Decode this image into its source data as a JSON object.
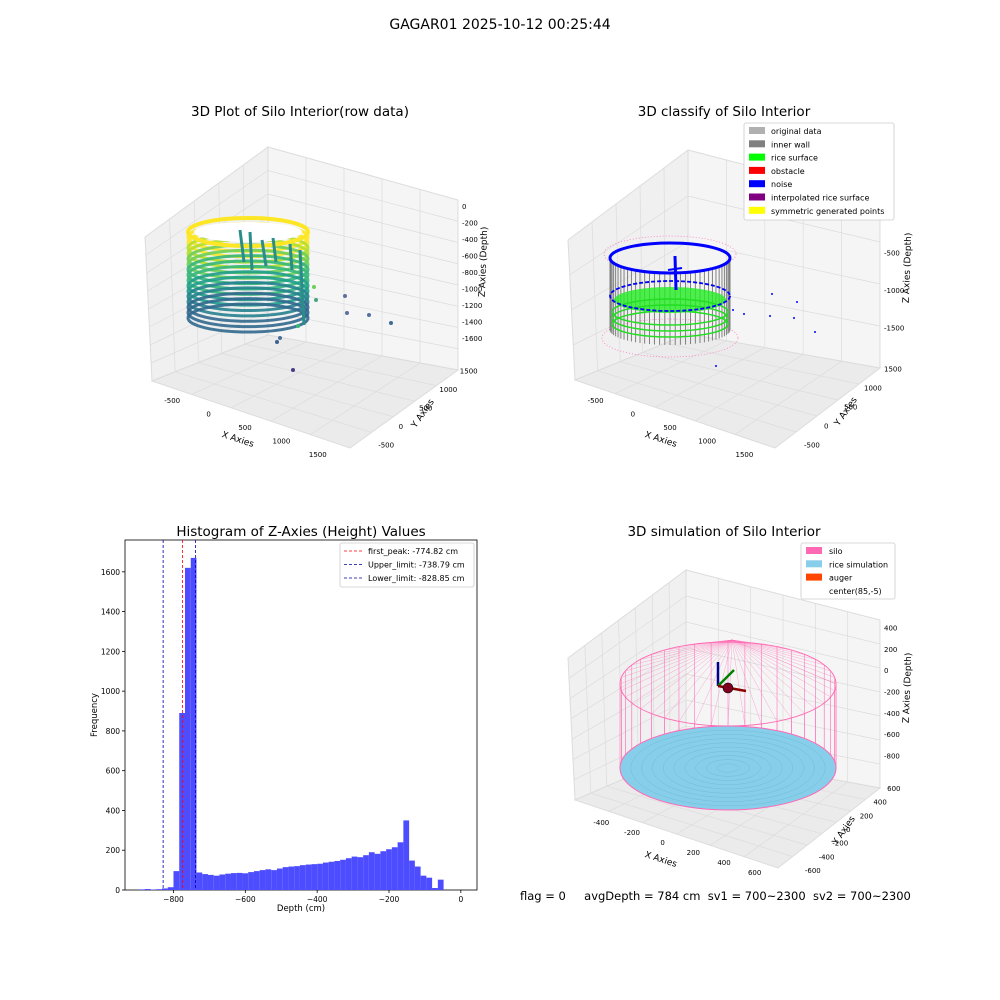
{
  "figure": {
    "suptitle": "GAGAR01 2025-10-12 00:25:44",
    "status_line": {
      "flag": "flag = 0",
      "avg_depth": "avgDepth = 784 cm",
      "sv1": "sv1 = 700~2300",
      "sv2": "sv2 = 700~2300"
    }
  },
  "colors": {
    "hist_bar": "#4d4dff",
    "peak_line": "#ff0000",
    "limit_line": "#0000aa",
    "silo": "#ff69b4",
    "rice": "#87ceeb",
    "auger": "#ff4500",
    "grid": "#dcdcdc",
    "pane": "#f2f2f2"
  },
  "chart_data": [
    {
      "type": "scatter",
      "dims": 3,
      "title": "3D Plot of Silo Interior(row data)",
      "xlabel": "X Axies",
      "ylabel": "Y Axies",
      "zlabel": "Z Axies (Depth)",
      "xticks": [
        "-500",
        "0",
        "500",
        "1000",
        "1500"
      ],
      "yticks": [
        "-500",
        "0",
        "500",
        "1000",
        "1500"
      ],
      "zticks": [
        "0",
        "-200",
        "-400",
        "-600",
        "-800",
        "-1000",
        "-1200",
        "-1400",
        "-1600"
      ],
      "colormap": "viridis",
      "grid": true
    },
    {
      "type": "scatter",
      "dims": 3,
      "title": "3D classify of Silo Interior",
      "xlabel": "X Axies",
      "ylabel": "Y Axies",
      "zlabel": "Z Axies (Depth)",
      "xticks": [
        "-500",
        "0",
        "500",
        "1000",
        "1500"
      ],
      "yticks": [
        "-500",
        "0",
        "500",
        "1000",
        "1500"
      ],
      "zticks": [
        "0",
        "-500",
        "-1000",
        "-1500"
      ],
      "legend_position": "top-right",
      "legend": [
        {
          "label": "original data",
          "color": "#b0b0b0"
        },
        {
          "label": "inner wall",
          "color": "#808080"
        },
        {
          "label": "rice surface",
          "color": "#00ff00"
        },
        {
          "label": "obstacle",
          "color": "#ff0000"
        },
        {
          "label": "noise",
          "color": "#0000ff"
        },
        {
          "label": "interpolated rice surface",
          "color": "#800080"
        },
        {
          "label": "symmetric generated points",
          "color": "#ffff00"
        }
      ],
      "grid": true
    },
    {
      "type": "bar",
      "title": "Histogram of Z-Axies (Height) Values",
      "xlabel": "Depth (cm)",
      "ylabel": "Frequency",
      "xlim": [
        -935,
        45
      ],
      "ylim": [
        0,
        1760
      ],
      "xticks": [
        -800,
        -600,
        -400,
        -200,
        0
      ],
      "yticks": [
        0,
        200,
        400,
        600,
        800,
        1000,
        1200,
        1400,
        1600
      ],
      "bin_width": 16,
      "bin_start": -896,
      "values": [
        3,
        5,
        2,
        4,
        8,
        14,
        95,
        890,
        1620,
        1670,
        88,
        80,
        76,
        72,
        78,
        82,
        85,
        86,
        84,
        90,
        95,
        100,
        104,
        100,
        108,
        115,
        118,
        120,
        125,
        128,
        130,
        132,
        138,
        142,
        146,
        152,
        160,
        168,
        165,
        175,
        190,
        182,
        195,
        205,
        215,
        240,
        350,
        148,
        118,
        72,
        62,
        10,
        52
      ],
      "legend_position": "top-right",
      "lines": [
        {
          "label": "first_peak: -774.82 cm",
          "x": -774.82,
          "color": "#ff0000"
        },
        {
          "label": "Upper_limit: -738.79 cm",
          "x": -738.79,
          "color": "#0000aa"
        },
        {
          "label": "Lower_limit: -828.85 cm",
          "x": -828.85,
          "color": "#0000aa"
        }
      ],
      "grid": false
    },
    {
      "type": "scatter",
      "dims": 3,
      "title": "3D simulation of Silo Interior",
      "xlabel": "X Axies",
      "ylabel": "Y Axies",
      "zlabel": "Z Axies (Depth)",
      "xticks": [
        "-400",
        "-200",
        "0",
        "200",
        "400",
        "600"
      ],
      "yticks": [
        "-600",
        "-400",
        "-200",
        "0",
        "200",
        "400",
        "600"
      ],
      "zticks": [
        "400",
        "200",
        "0",
        "-200",
        "-400",
        "-600",
        "-800"
      ],
      "legend_position": "top-right",
      "legend": [
        {
          "label": "silo",
          "color": "#ff69b4"
        },
        {
          "label": "rice simulation",
          "color": "#87ceeb"
        },
        {
          "label": "auger",
          "color": "#ff4500"
        },
        {
          "label": "center(85,-5)",
          "color": "#ffffff"
        }
      ],
      "grid": true
    }
  ]
}
